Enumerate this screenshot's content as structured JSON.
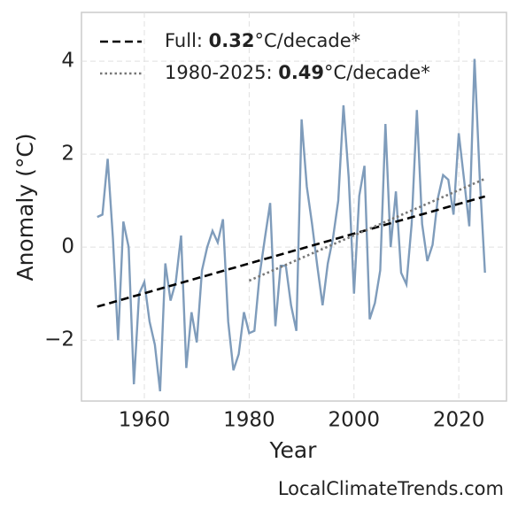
{
  "chart_data": {
    "type": "line",
    "x_label": "Year",
    "y_label": "Anomaly (°C)",
    "footer": "LocalClimateTrends.com",
    "xlim": [
      1948,
      2029.1
    ],
    "ylim": [
      -3.31,
      5.05
    ],
    "xticks": [
      1960,
      1980,
      2000,
      2020
    ],
    "yticks": [
      {
        "value": -2,
        "label": "−2"
      },
      0,
      2,
      4
    ],
    "grid": true,
    "legend": "upper left",
    "series": [
      {
        "color": "#7f9cbb",
        "linestyle": "solid",
        "x": [
          1951,
          1952,
          1953,
          1954,
          1955,
          1956,
          1957,
          1958,
          1959,
          1960,
          1961,
          1962,
          1963,
          1964,
          1965,
          1966,
          1967,
          1968,
          1969,
          1970,
          1971,
          1972,
          1973,
          1974,
          1975,
          1976,
          1977,
          1978,
          1979,
          1980,
          1981,
          1982,
          1983,
          1984,
          1985,
          1986,
          1987,
          1988,
          1989,
          1990,
          1991,
          1992,
          1993,
          1994,
          1995,
          1996,
          1997,
          1998,
          1999,
          2000,
          2001,
          2002,
          2003,
          2004,
          2005,
          2006,
          2007,
          2008,
          2009,
          2010,
          2011,
          2012,
          2013,
          2014,
          2015,
          2016,
          2017,
          2018,
          2019,
          2020,
          2021,
          2022,
          2023,
          2024,
          2025
        ],
        "values": [
          0.65,
          0.7,
          1.9,
          0.2,
          -2.0,
          0.55,
          0.0,
          -2.95,
          -1.0,
          -0.75,
          -1.6,
          -2.1,
          -3.1,
          -0.35,
          -1.15,
          -0.75,
          0.25,
          -2.6,
          -1.4,
          -2.05,
          -0.5,
          0.0,
          0.35,
          0.1,
          0.6,
          -1.6,
          -2.65,
          -2.3,
          -1.4,
          -1.85,
          -1.8,
          -0.6,
          0.2,
          0.95,
          -1.7,
          -0.4,
          -0.4,
          -1.25,
          -1.8,
          2.75,
          1.3,
          0.5,
          -0.4,
          -1.25,
          -0.35,
          0.2,
          1.0,
          3.05,
          1.5,
          -1.0,
          1.1,
          1.75,
          -1.55,
          -1.2,
          -0.5,
          2.65,
          0.0,
          1.2,
          -0.55,
          -0.8,
          0.5,
          2.95,
          0.5,
          -0.3,
          0.05,
          1.05,
          1.55,
          1.45,
          0.7,
          2.45,
          1.45,
          0.45,
          4.05,
          1.5,
          -0.55
        ]
      },
      {
        "color": "#000000",
        "linestyle": "dashed",
        "label": {
          "name": "Full: ",
          "slope": "0.32",
          "unit": "°C/decade*"
        },
        "x": [
          1951,
          2025
        ],
        "values": [
          -1.28,
          1.09
        ]
      },
      {
        "color": "#777777",
        "linestyle": "dotted",
        "label": {
          "name": "1980-2025: ",
          "slope": "0.49",
          "unit": "°C/decade*"
        },
        "x": [
          1980,
          2025
        ],
        "values": [
          -0.72,
          1.47
        ]
      }
    ]
  }
}
